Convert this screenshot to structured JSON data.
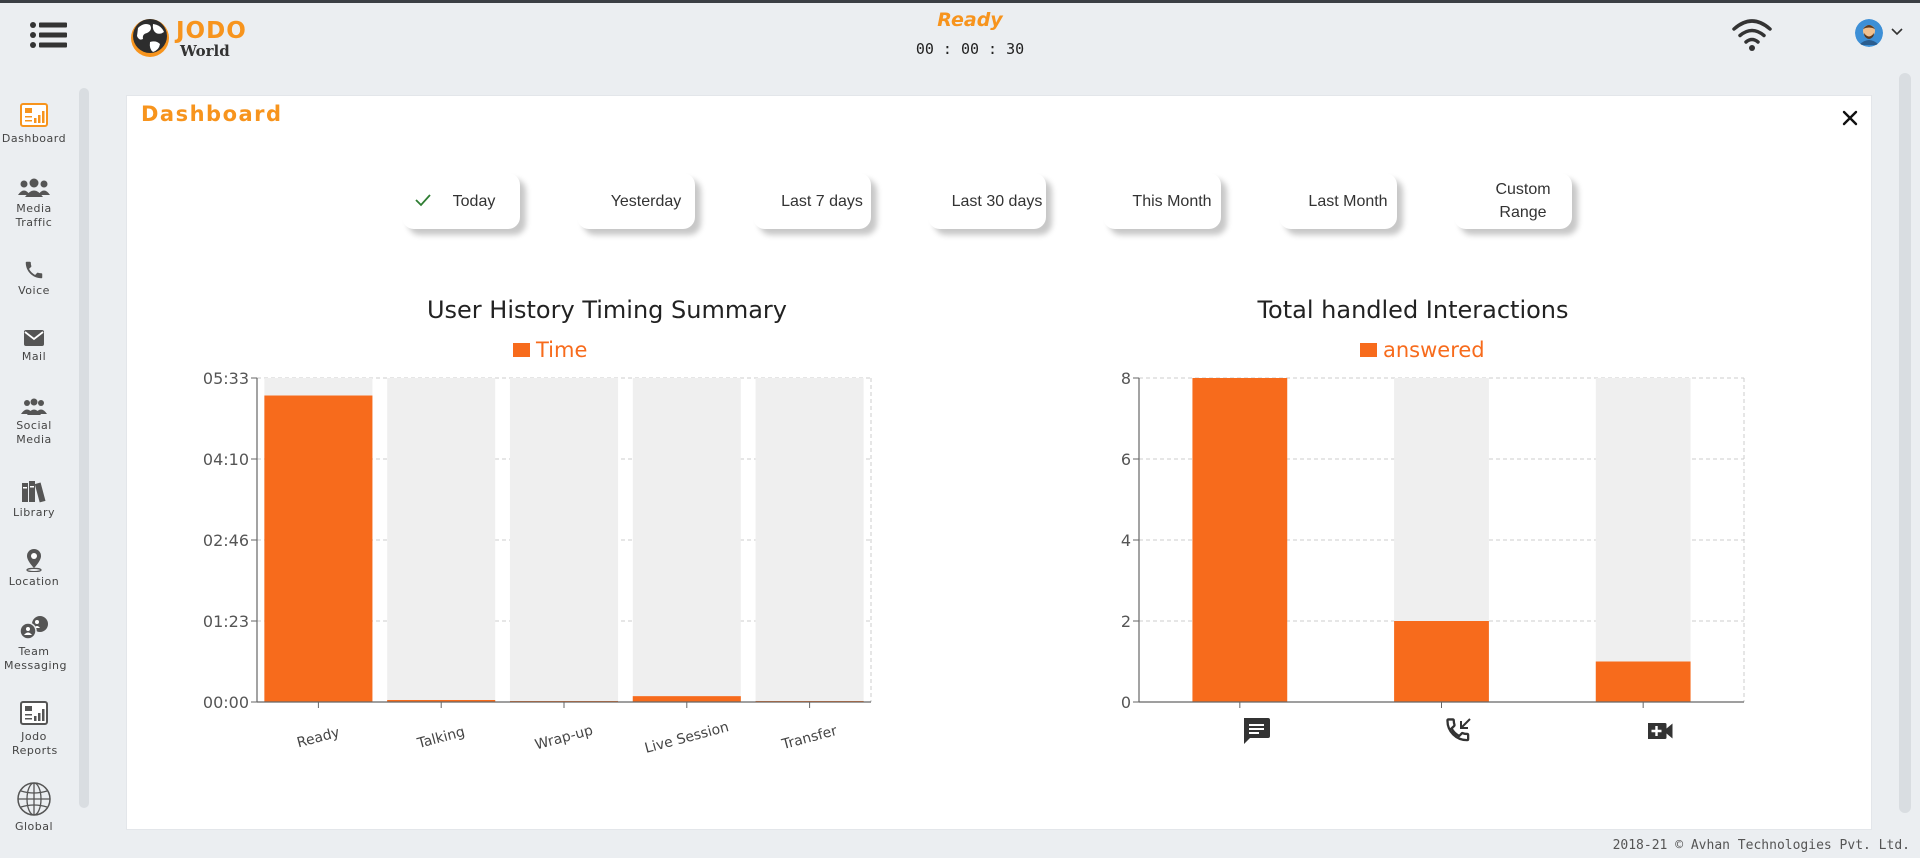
{
  "header": {
    "logo_jodo": "JODO",
    "logo_world": "World",
    "status": "Ready",
    "timer": "00 : 00 : 30",
    "menu_icon": "hamburger-menu-icon",
    "wifi_icon": "wifi-icon",
    "avatar_icon": "user-avatar",
    "caret_icon": "chevron-down-icon"
  },
  "sidebar": {
    "items": [
      {
        "label": "Dashboard",
        "icon": "dashboard-chart-icon",
        "active": true
      },
      {
        "label": "Media Traffic",
        "icon": "group-users-icon"
      },
      {
        "label": "Voice",
        "icon": "phone-icon"
      },
      {
        "label": "Mail",
        "icon": "envelope-icon"
      },
      {
        "label": "Social Media",
        "icon": "people-icon"
      },
      {
        "label": "Library",
        "icon": "books-icon"
      },
      {
        "label": "Location",
        "icon": "location-pin-icon"
      },
      {
        "label": "Team Messaging",
        "icon": "chat-bubbles-icon"
      },
      {
        "label": "Jodo Reports",
        "icon": "report-chart-icon"
      },
      {
        "label": "Global",
        "icon": "globe-icon"
      }
    ]
  },
  "panel": {
    "title": "Dashboard",
    "close_icon": "close-icon",
    "ranges": [
      {
        "label": "Today",
        "selected": true
      },
      {
        "label": "Yesterday",
        "selected": false
      },
      {
        "label": "Last 7 days",
        "selected": false
      },
      {
        "label": "Last 30 days",
        "selected": false
      },
      {
        "label": "This Month",
        "selected": false
      },
      {
        "label": "Last Month",
        "selected": false
      },
      {
        "label": "Custom Range",
        "line1": "Custom",
        "line2": "Range",
        "selected": false
      }
    ]
  },
  "colors": {
    "accent": "#f7941d",
    "bar": "#f76b1c",
    "bar_track": "#efefef"
  },
  "chart_data": [
    {
      "type": "bar",
      "title": "User History Timing Summary",
      "legend": [
        "Time"
      ],
      "legend_position": "top",
      "categories": [
        "Ready",
        "Talking",
        "Wrap-up",
        "Live Session",
        "Transfer"
      ],
      "series": [
        {
          "name": "Time",
          "values_seconds": [
            315,
            1,
            0,
            6,
            0
          ]
        }
      ],
      "y_ticks": [
        "00:00",
        "01:23",
        "02:46",
        "04:10",
        "05:33"
      ],
      "ylim_seconds": [
        0,
        333
      ],
      "grid": true
    },
    {
      "type": "bar",
      "title": "Total handled Interactions",
      "legend": [
        "answered"
      ],
      "legend_position": "top",
      "categories": [
        "chat",
        "voice",
        "video"
      ],
      "category_icons": [
        "chat-message-icon",
        "incoming-call-icon",
        "video-call-icon"
      ],
      "series": [
        {
          "name": "answered",
          "values": [
            8,
            2,
            1
          ]
        }
      ],
      "y_ticks": [
        "0",
        "2",
        "4",
        "6",
        "8"
      ],
      "ylim": [
        0,
        8
      ],
      "grid": true
    }
  ],
  "footer": {
    "copyright": "2018-21 © Avhan Technologies Pvt. Ltd."
  }
}
